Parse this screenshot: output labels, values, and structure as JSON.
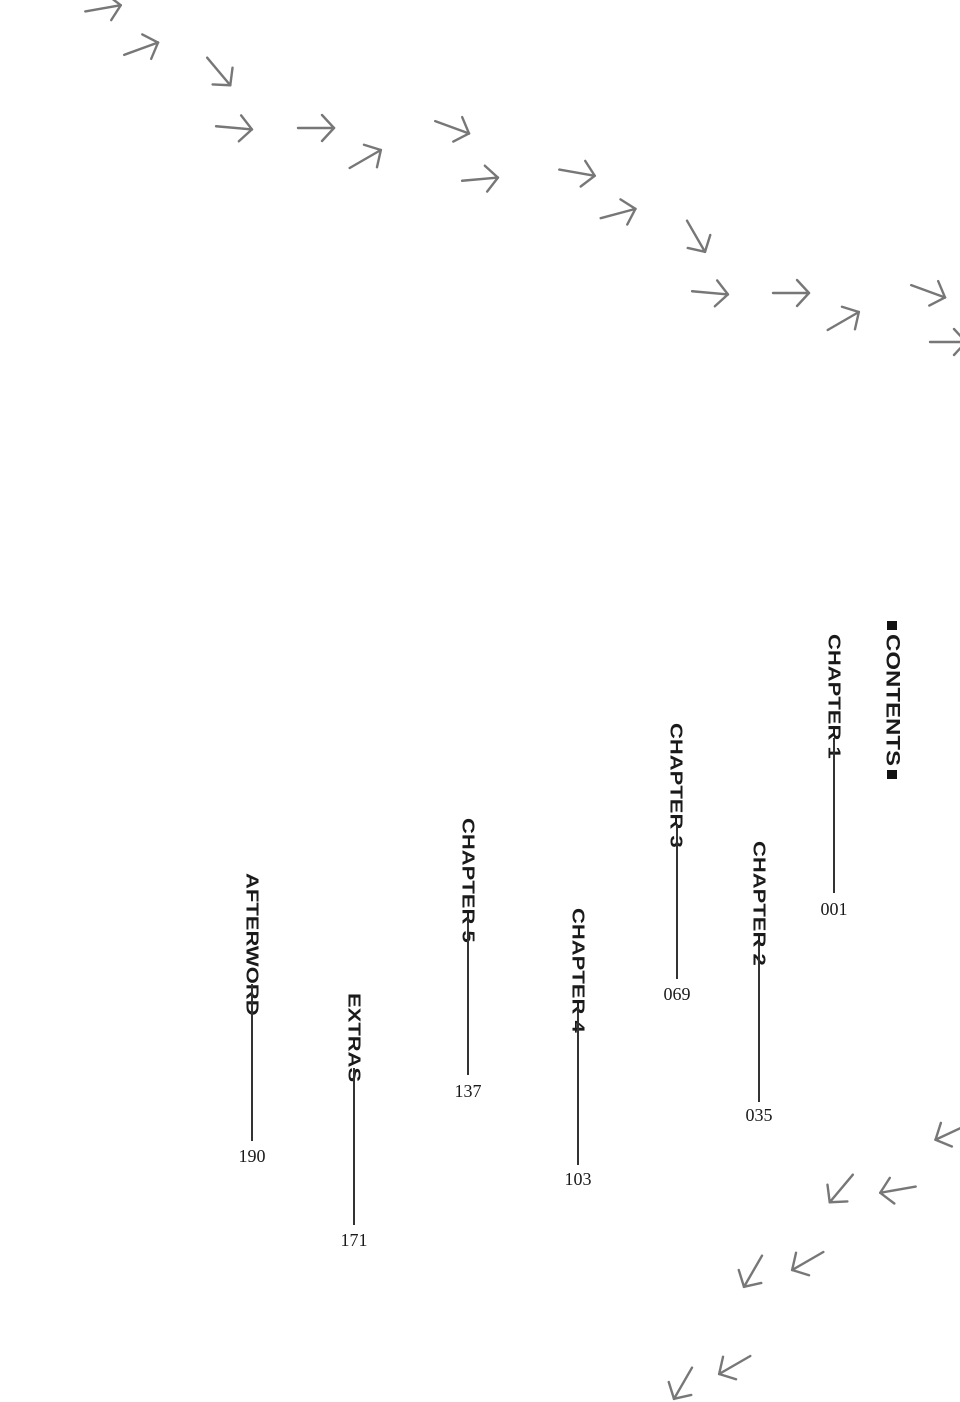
{
  "contents": {
    "title": "CONTENTS",
    "entries": [
      {
        "label": "CHAPTER 1",
        "page": "001"
      },
      {
        "label": "CHAPTER 2",
        "page": "035"
      },
      {
        "label": "CHAPTER 3",
        "page": "069"
      },
      {
        "label": "CHAPTER 4",
        "page": "103"
      },
      {
        "label": "CHAPTER 5",
        "page": "137"
      },
      {
        "label": "EXTRAS",
        "page": "171"
      },
      {
        "label": "AFTERWORD",
        "page": "190"
      }
    ]
  },
  "decoration": {
    "icon": "bird-footprint-icon",
    "track_color": "#777777",
    "ink_color": "#1a1a1a"
  }
}
